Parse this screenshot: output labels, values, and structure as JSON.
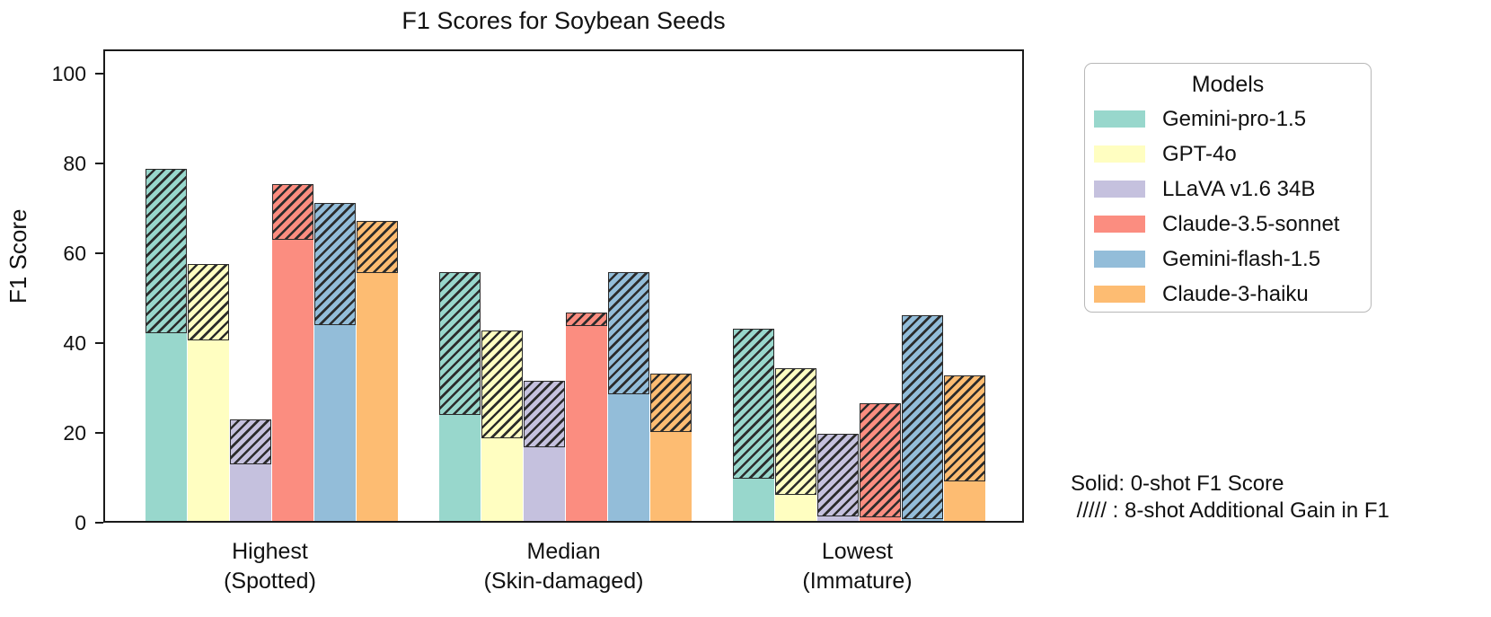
{
  "figure": {
    "title": "F1 Scores for Soybean Seeds",
    "y_axis_label": "F1 Score"
  },
  "legend": {
    "title": "Models",
    "items": [
      {
        "label": "Gemini-pro-1.5",
        "color": "#98d7cc"
      },
      {
        "label": "GPT-4o",
        "color": "#fffec1"
      },
      {
        "label": "LLaVA v1.6 34B",
        "color": "#c5c1de"
      },
      {
        "label": "Claude-3.5-sonnet",
        "color": "#fb8d80"
      },
      {
        "label": "Gemini-flash-1.5",
        "color": "#93bdd9"
      },
      {
        "label": "Claude-3-haiku",
        "color": "#fdbc72"
      }
    ]
  },
  "annotation": {
    "line1": "Solid: 0-shot F1 Score",
    "line2": " ///// : 8-shot Additional Gain in F1"
  },
  "chart_data": {
    "type": "bar",
    "title": "F1 Scores for Soybean Seeds",
    "ylabel": "F1 Score",
    "ylim": [
      0,
      105.4
    ],
    "yticks": [
      0,
      20,
      40,
      60,
      80,
      100
    ],
    "grid": false,
    "legend_title": "Models",
    "legend_position": "outside-right",
    "categories": [
      [
        "Highest",
        "(Spotted)"
      ],
      [
        "Median",
        "(Skin-damaged)"
      ],
      [
        "Lowest",
        "(Immature)"
      ]
    ],
    "solid_meaning": "0-shot F1 Score",
    "hatch_meaning": "8-shot Additional Gain in F1",
    "series": [
      {
        "name": "Gemini-pro-1.5",
        "color": "#98d7cc",
        "solid_0shot": [
          41.9,
          23.7,
          9.4
        ],
        "total_8shot": [
          78.4,
          55.4,
          42.9
        ]
      },
      {
        "name": "GPT-4o",
        "color": "#fffec1",
        "solid_0shot": [
          40.2,
          18.4,
          5.9
        ],
        "total_8shot": [
          57.2,
          42.5,
          34.1
        ]
      },
      {
        "name": "LLaVA v1.6 34B",
        "color": "#c5c1de",
        "solid_0shot": [
          12.7,
          16.5,
          1.0
        ],
        "total_8shot": [
          22.7,
          31.2,
          19.4
        ]
      },
      {
        "name": "Claude-3.5-sonnet",
        "color": "#fb8d80",
        "solid_0shot": [
          62.6,
          43.5,
          0.8
        ],
        "total_8shot": [
          75.1,
          46.4,
          26.2
        ]
      },
      {
        "name": "Gemini-flash-1.5",
        "color": "#93bdd9",
        "solid_0shot": [
          43.6,
          28.3,
          0.5
        ],
        "total_8shot": [
          70.9,
          55.5,
          45.9
        ]
      },
      {
        "name": "Claude-3-haiku",
        "color": "#fdbc72",
        "solid_0shot": [
          55.3,
          19.9,
          8.9
        ],
        "total_8shot": [
          66.9,
          32.9,
          32.4
        ]
      }
    ]
  }
}
